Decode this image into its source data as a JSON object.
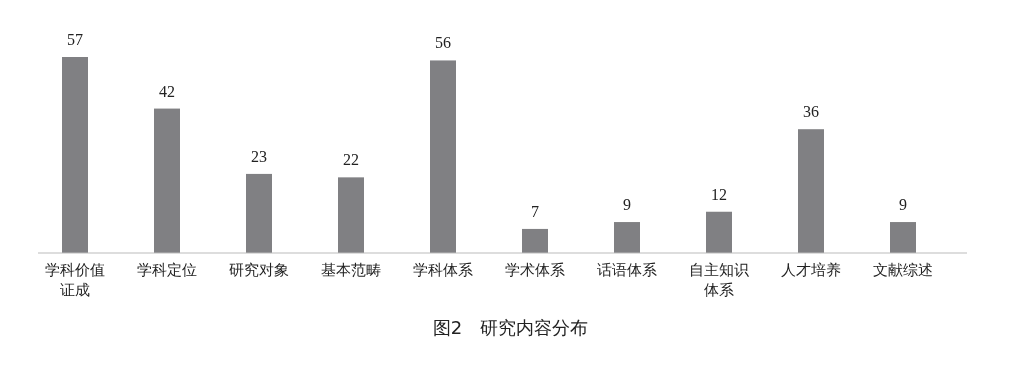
{
  "chart_data": {
    "type": "bar",
    "title": "图2　研究内容分布",
    "categories": [
      "学科价值证成",
      "学科定位",
      "研究对象",
      "基本范畴",
      "学科体系",
      "学术体系",
      "话语体系",
      "自主知识体系",
      "人才培养",
      "文献综述"
    ],
    "values": [
      57,
      42,
      23,
      22,
      56,
      7,
      9,
      12,
      36,
      9
    ],
    "color": "#808083",
    "data_labels": true
  }
}
